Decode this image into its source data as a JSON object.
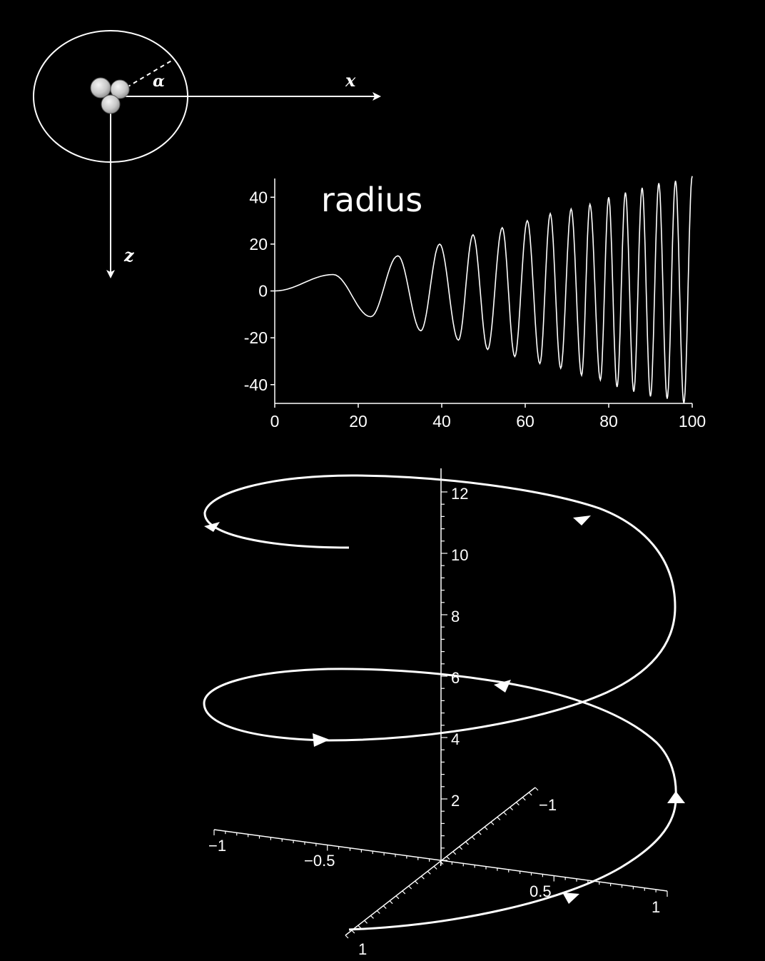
{
  "diagram": {
    "x_axis_label": "x",
    "z_axis_label": "z",
    "angle_label": "α"
  },
  "chart_data": {
    "type": "line",
    "title": "radius",
    "xlabel": "",
    "ylabel": "",
    "xlim": [
      0,
      100
    ],
    "ylim": [
      -48,
      48
    ],
    "x_ticks": [
      "0",
      "20",
      "40",
      "60",
      "80",
      "100"
    ],
    "y_ticks": [
      "40",
      "20",
      "0",
      "-20",
      "-40"
    ],
    "series": [
      {
        "x": [
          0,
          14,
          23,
          29.5,
          35,
          39.5,
          44,
          47.5,
          51,
          54.5,
          57.5,
          60.5,
          63.5,
          66,
          68.5,
          71,
          73.5,
          75.5,
          78,
          80,
          82,
          84,
          86,
          88,
          90,
          92,
          94,
          96,
          98,
          100
        ],
        "values": [
          0,
          7,
          -11,
          15,
          -17,
          20,
          -21,
          24,
          -25,
          27,
          -28,
          30,
          -31,
          33,
          -33,
          35,
          -36,
          37,
          -38,
          40,
          -41,
          42,
          -43,
          44,
          -45,
          46,
          -46,
          47,
          -48,
          49
        ]
      }
    ]
  },
  "plot3d": {
    "vertical_ticks": [
      "2",
      "4",
      "6",
      "8",
      "10",
      "12"
    ],
    "x_ticks": [
      "−1",
      "−0.5",
      "0.5",
      "1"
    ],
    "y_ticks": [
      "−1",
      "1"
    ]
  }
}
